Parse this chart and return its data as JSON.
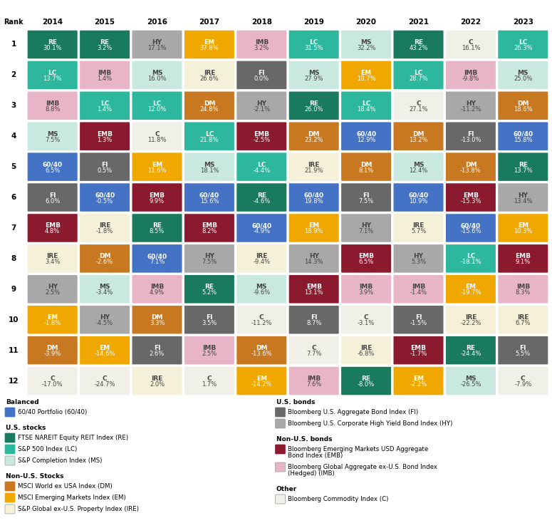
{
  "years": [
    "2014",
    "2015",
    "2016",
    "2017",
    "2018",
    "2019",
    "2020",
    "2021",
    "2022",
    "2023"
  ],
  "n_rows": 12,
  "colors": {
    "RE": "#1a7a5e",
    "LC": "#2db89e",
    "IMB": "#e8b4c8",
    "MS": "#c8e8e0",
    "EMB": "#8b1a2e",
    "HY": "#a8a8a8",
    "FI": "#686868",
    "DM": "#c87820",
    "EM": "#f0a800",
    "IRE": "#f5f0d8",
    "60/40": "#4472c4",
    "C": "#f0f0e8"
  },
  "text_colors": {
    "RE": "#ffffff",
    "LC": "#ffffff",
    "IMB": "#444444",
    "MS": "#444444",
    "EMB": "#ffffff",
    "HY": "#444444",
    "FI": "#ffffff",
    "DM": "#ffffff",
    "EM": "#ffffff",
    "IRE": "#444444",
    "60/40": "#ffffff",
    "C": "#444444"
  },
  "light_colors": [
    "IMB",
    "MS",
    "HY",
    "IRE",
    "C"
  ],
  "grid": [
    [
      {
        "label": "RE",
        "val": "30.1%"
      },
      {
        "label": "LC",
        "val": "13.7%"
      },
      {
        "label": "IMB",
        "val": "8.8%"
      },
      {
        "label": "MS",
        "val": "7.5%"
      },
      {
        "label": "60/40",
        "val": "6.5%"
      },
      {
        "label": "FI",
        "val": "6.0%"
      },
      {
        "label": "EMB",
        "val": "4.8%"
      },
      {
        "label": "IRE",
        "val": "3.4%"
      },
      {
        "label": "HY",
        "val": "2.5%"
      },
      {
        "label": "EM",
        "val": "-1.8%"
      },
      {
        "label": "DM",
        "val": "-3.9%"
      },
      {
        "label": "C",
        "val": "-17.0%"
      }
    ],
    [
      {
        "label": "RE",
        "val": "3.2%"
      },
      {
        "label": "IMB",
        "val": "1.4%"
      },
      {
        "label": "LC",
        "val": "1.4%"
      },
      {
        "label": "EMB",
        "val": "1.3%"
      },
      {
        "label": "FI",
        "val": "0.5%"
      },
      {
        "label": "60/40",
        "val": "-0.5%"
      },
      {
        "label": "IRE",
        "val": "-1.8%"
      },
      {
        "label": "DM",
        "val": "-2.6%"
      },
      {
        "label": "MS",
        "val": "-3.4%"
      },
      {
        "label": "HY",
        "val": "-4.5%"
      },
      {
        "label": "EM",
        "val": "-14.6%"
      },
      {
        "label": "C",
        "val": "-24.7%"
      }
    ],
    [
      {
        "label": "HY",
        "val": "17.1%"
      },
      {
        "label": "MS",
        "val": "16.0%"
      },
      {
        "label": "LC",
        "val": "12.0%"
      },
      {
        "label": "C",
        "val": "11.8%"
      },
      {
        "label": "EM",
        "val": "11.6%"
      },
      {
        "label": "EMB",
        "val": "9.9%"
      },
      {
        "label": "RE",
        "val": "8.5%"
      },
      {
        "label": "60/40",
        "val": "7.1%"
      },
      {
        "label": "IMB",
        "val": "4.9%"
      },
      {
        "label": "DM",
        "val": "3.3%"
      },
      {
        "label": "FI",
        "val": "2.6%"
      },
      {
        "label": "IRE",
        "val": "2.0%"
      }
    ],
    [
      {
        "label": "EM",
        "val": "37.8%"
      },
      {
        "label": "IRE",
        "val": "26.6%"
      },
      {
        "label": "DM",
        "val": "24.8%"
      },
      {
        "label": "LC",
        "val": "21.8%"
      },
      {
        "label": "MS",
        "val": "18.1%"
      },
      {
        "label": "60/40",
        "val": "15.6%"
      },
      {
        "label": "EMB",
        "val": "8.2%"
      },
      {
        "label": "HY",
        "val": "7.5%"
      },
      {
        "label": "RE",
        "val": "5.2%"
      },
      {
        "label": "FI",
        "val": "3.5%"
      },
      {
        "label": "IMB",
        "val": "2.5%"
      },
      {
        "label": "C",
        "val": "1.7%"
      }
    ],
    [
      {
        "label": "IMB",
        "val": "3.2%"
      },
      {
        "label": "FI",
        "val": "0.0%"
      },
      {
        "label": "HY",
        "val": "-2.1%"
      },
      {
        "label": "EMB",
        "val": "-2.5%"
      },
      {
        "label": "LC",
        "val": "-4.4%"
      },
      {
        "label": "RE",
        "val": "-4.6%"
      },
      {
        "label": "60/40",
        "val": "-4.9%"
      },
      {
        "label": "IRE",
        "val": "-9.4%"
      },
      {
        "label": "MS",
        "val": "-9.6%"
      },
      {
        "label": "C",
        "val": "-11.2%"
      },
      {
        "label": "DM",
        "val": "-13.6%"
      },
      {
        "label": "EM",
        "val": "-14.2%"
      }
    ],
    [
      {
        "label": "LC",
        "val": "31.5%"
      },
      {
        "label": "MS",
        "val": "27.9%"
      },
      {
        "label": "RE",
        "val": "26.0%"
      },
      {
        "label": "DM",
        "val": "23.2%"
      },
      {
        "label": "IRE",
        "val": "21.9%"
      },
      {
        "label": "60/40",
        "val": "19.8%"
      },
      {
        "label": "EM",
        "val": "18.9%"
      },
      {
        "label": "HY",
        "val": "14.3%"
      },
      {
        "label": "EMB",
        "val": "13.1%"
      },
      {
        "label": "FI",
        "val": "8.7%"
      },
      {
        "label": "C",
        "val": "7.7%"
      },
      {
        "label": "IMB",
        "val": "7.6%"
      }
    ],
    [
      {
        "label": "MS",
        "val": "32.2%"
      },
      {
        "label": "EM",
        "val": "18.7%"
      },
      {
        "label": "LC",
        "val": "18.4%"
      },
      {
        "label": "60/40",
        "val": "12.9%"
      },
      {
        "label": "DM",
        "val": "8.1%"
      },
      {
        "label": "FI",
        "val": "7.5%"
      },
      {
        "label": "HY",
        "val": "7.1%"
      },
      {
        "label": "EMB",
        "val": "6.5%"
      },
      {
        "label": "IMB",
        "val": "3.9%"
      },
      {
        "label": "C",
        "val": "-3.1%"
      },
      {
        "label": "IRE",
        "val": "-6.8%"
      },
      {
        "label": "RE",
        "val": "-8.0%"
      }
    ],
    [
      {
        "label": "RE",
        "val": "43.2%"
      },
      {
        "label": "LC",
        "val": "28.7%"
      },
      {
        "label": "C",
        "val": "27.1%"
      },
      {
        "label": "DM",
        "val": "13.2%"
      },
      {
        "label": "MS",
        "val": "12.4%"
      },
      {
        "label": "60/40",
        "val": "10.9%"
      },
      {
        "label": "IRE",
        "val": "5.7%"
      },
      {
        "label": "HY",
        "val": "5.3%"
      },
      {
        "label": "IMB",
        "val": "-1.4%"
      },
      {
        "label": "FI",
        "val": "-1.5%"
      },
      {
        "label": "EMB",
        "val": "-1.7%"
      },
      {
        "label": "EM",
        "val": "-2.2%"
      }
    ],
    [
      {
        "label": "C",
        "val": "16.1%"
      },
      {
        "label": "IMB",
        "val": "-9.8%"
      },
      {
        "label": "HY",
        "val": "-11.2%"
      },
      {
        "label": "FI",
        "val": "-13.0%"
      },
      {
        "label": "DM",
        "val": "-13.8%"
      },
      {
        "label": "EMB",
        "val": "-15.3%"
      },
      {
        "label": "60/40",
        "val": "-15.6%"
      },
      {
        "label": "LC",
        "val": "-18.1%"
      },
      {
        "label": "EM",
        "val": "-19.7%"
      },
      {
        "label": "IRE",
        "val": "-22.2%"
      },
      {
        "label": "RE",
        "val": "-24.4%"
      },
      {
        "label": "MS",
        "val": "-26.5%"
      }
    ],
    [
      {
        "label": "LC",
        "val": "26.3%"
      },
      {
        "label": "MS",
        "val": "25.0%"
      },
      {
        "label": "DM",
        "val": "18.6%"
      },
      {
        "label": "60/40",
        "val": "15.8%"
      },
      {
        "label": "RE",
        "val": "13.7%"
      },
      {
        "label": "HY",
        "val": "13.4%"
      },
      {
        "label": "EM",
        "val": "10.3%"
      },
      {
        "label": "EMB",
        "val": "9.1%"
      },
      {
        "label": "IMB",
        "val": "8.3%"
      },
      {
        "label": "IRE",
        "val": "6.7%"
      },
      {
        "label": "FI",
        "val": "5.5%"
      },
      {
        "label": "C",
        "val": "-7.9%"
      }
    ]
  ],
  "legend_left": [
    {
      "section": "Balanced",
      "items": [
        {
          "abbr": "60/40",
          "name": "60/40 Portfolio (60/40)"
        }
      ]
    },
    {
      "section": "U.S. stocks",
      "items": [
        {
          "abbr": "RE",
          "name": "FTSE NAREIT Equity REIT Index (RE)"
        },
        {
          "abbr": "LC",
          "name": "S&P 500 Index (LC)"
        },
        {
          "abbr": "MS",
          "name": "S&P Completion Index (MS)"
        }
      ]
    },
    {
      "section": "Non-U.S. Stocks",
      "items": [
        {
          "abbr": "DM",
          "name": "MSCI World ex USA Index (DM)"
        },
        {
          "abbr": "EM",
          "name": "MSCI Emerging Markets Index (EM)"
        },
        {
          "abbr": "IRE",
          "name": "S&P Global ex-U.S. Property Index (IRE)"
        }
      ]
    }
  ],
  "legend_right": [
    {
      "section": "U.S. bonds",
      "items": [
        {
          "abbr": "FI",
          "name": "Bloomberg U.S. Aggregate Bond Index (FI)"
        },
        {
          "abbr": "HY",
          "name": "Bloomberg U.S. Corporate High Yield Bond Index (HY)"
        }
      ]
    },
    {
      "section": "Non-U.S. bonds",
      "items": [
        {
          "abbr": "EMB",
          "name": "Bloomberg Emerging Markets USD Aggregate\nBond Index (EMB)"
        },
        {
          "abbr": "IMB",
          "name": "Bloomberg Global Aggregate ex-U.S. Bond Index\n(Hedged) (IMB)"
        }
      ]
    },
    {
      "section": "Other",
      "items": [
        {
          "abbr": "C",
          "name": "Bloomberg Commodity Index (C)"
        }
      ]
    }
  ]
}
